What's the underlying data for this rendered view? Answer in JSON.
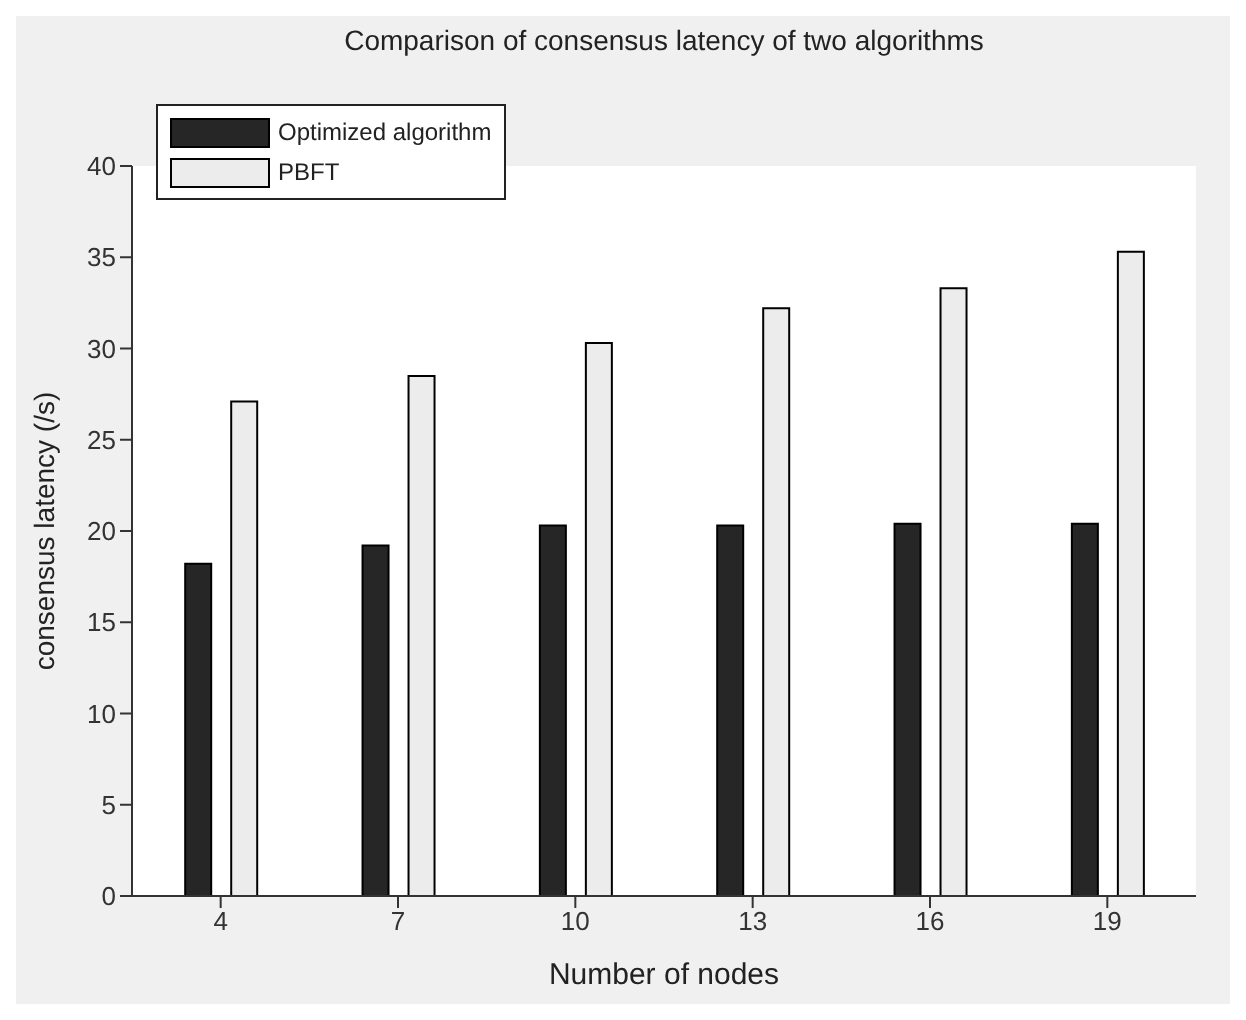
{
  "chart_data": {
    "type": "bar",
    "title": "Comparison of consensus latency of two algorithms",
    "xlabel": "Number of nodes",
    "ylabel": "consensus latency (/s)",
    "categories": [
      "4",
      "7",
      "10",
      "13",
      "16",
      "19"
    ],
    "series": [
      {
        "name": "Optimized algorithm",
        "color": "#262626",
        "values": [
          18.2,
          19.2,
          20.3,
          20.3,
          20.4,
          20.4
        ]
      },
      {
        "name": "PBFT",
        "color": "#ececec",
        "values": [
          27.1,
          28.5,
          30.3,
          32.2,
          33.3,
          35.3
        ]
      }
    ],
    "ylim": [
      0,
      40
    ],
    "yticks": [
      0,
      5,
      10,
      15,
      20,
      25,
      30,
      35,
      40
    ],
    "grid": false,
    "legend": "top left"
  }
}
